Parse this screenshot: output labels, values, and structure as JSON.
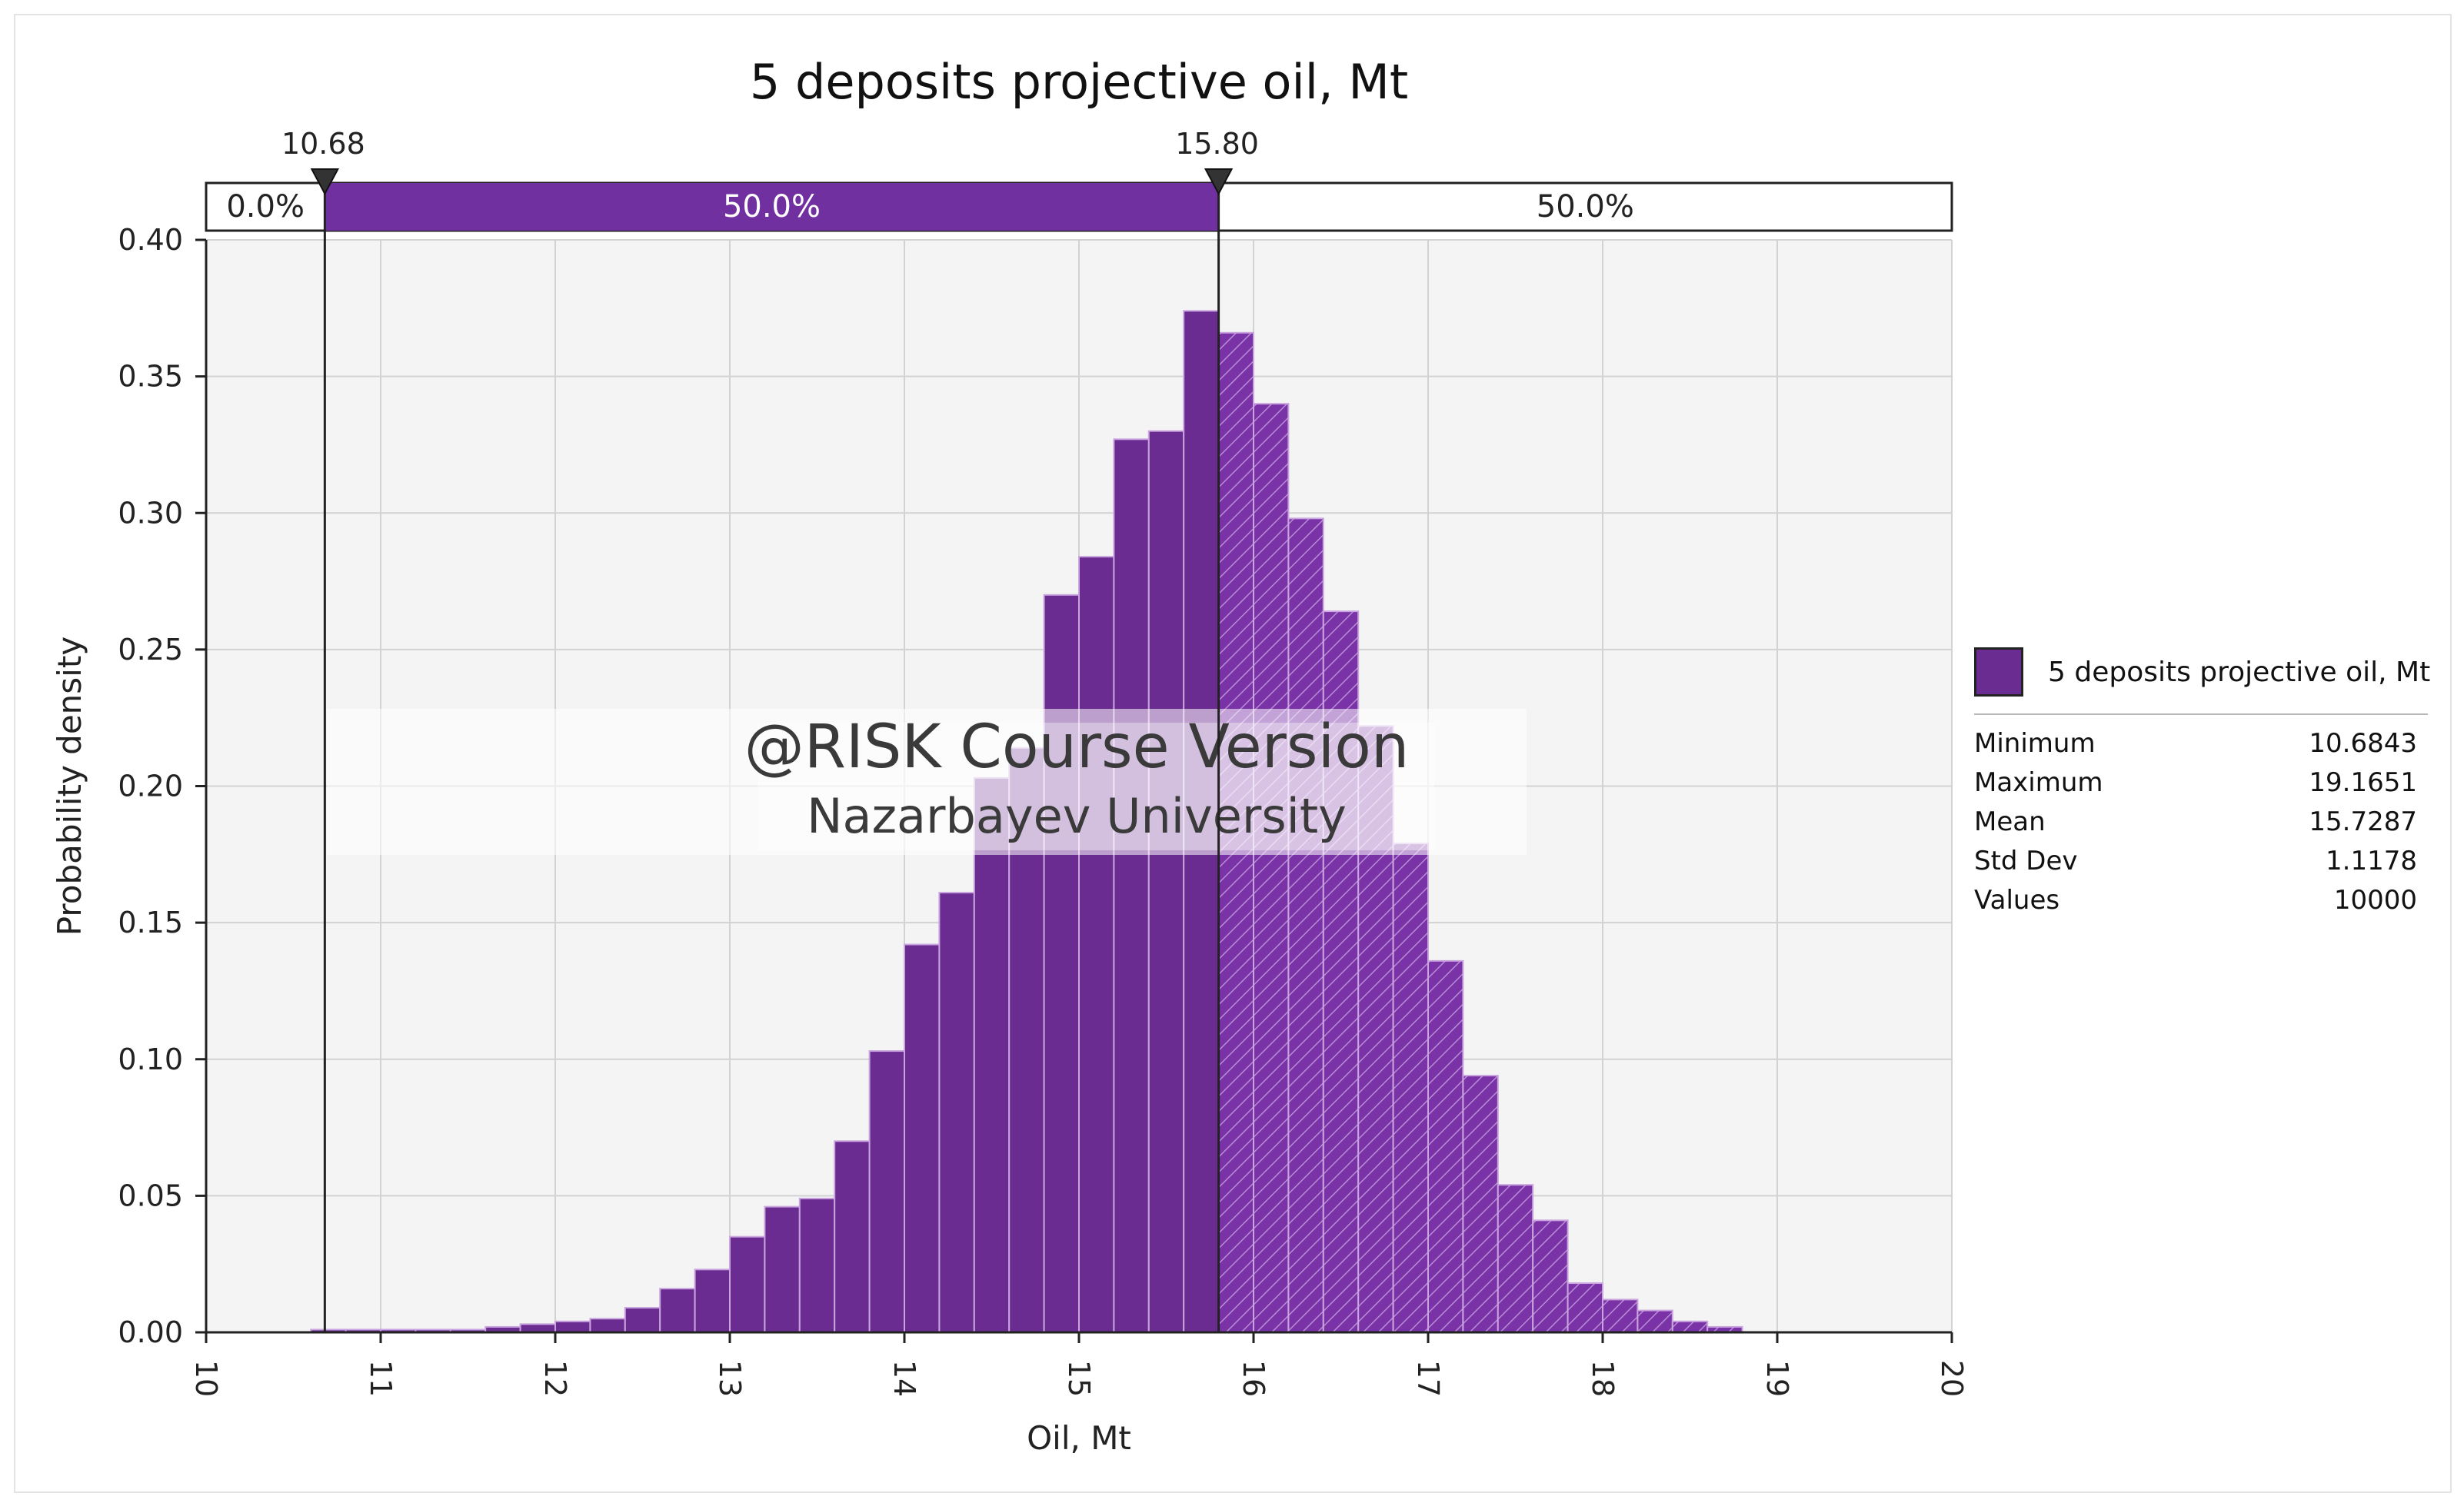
{
  "chart_data": {
    "type": "bar",
    "title": "5 deposits projective oil, Mt",
    "xlabel": "Oil, Mt",
    "ylabel": "Probability density",
    "xlim": [
      10,
      20
    ],
    "ylim": [
      0,
      0.4
    ],
    "x_ticks": [
      "10",
      "11",
      "12",
      "13",
      "14",
      "15",
      "16",
      "17",
      "18",
      "19",
      "20"
    ],
    "y_ticks": [
      "0.00",
      "0.05",
      "0.10",
      "0.15",
      "0.20",
      "0.25",
      "0.30",
      "0.35",
      "0.40"
    ],
    "grid": true,
    "bin_start": 10.6,
    "bin_width": 0.2,
    "values": [
      0.001,
      0.001,
      0.001,
      0.001,
      0.001,
      0.002,
      0.003,
      0.004,
      0.005,
      0.009,
      0.016,
      0.023,
      0.035,
      0.046,
      0.049,
      0.07,
      0.103,
      0.142,
      0.161,
      0.203,
      0.214,
      0.27,
      0.284,
      0.327,
      0.33,
      0.374,
      0.366,
      0.34,
      0.298,
      0.264,
      0.222,
      0.179,
      0.136,
      0.094,
      0.054,
      0.041,
      0.018,
      0.012,
      0.008,
      0.004,
      0.002
    ],
    "delimiters": {
      "left": {
        "value": 10.68,
        "label": "10.68"
      },
      "right": {
        "value": 15.8,
        "label": "15.80"
      },
      "percentages": [
        "0.0%",
        "50.0%",
        "50.0%"
      ]
    },
    "legend": {
      "series_name": "5 deposits projective oil, Mt",
      "placement": "right",
      "stats": [
        {
          "label": "Minimum",
          "value": "10.6843"
        },
        {
          "label": "Maximum",
          "value": "19.1651"
        },
        {
          "label": "Mean",
          "value": "15.7287"
        },
        {
          "label": "Std Dev",
          "value": "1.1178"
        },
        {
          "label": "Values",
          "value": "10000"
        }
      ]
    },
    "watermark": {
      "line1": "@RISK Course Version",
      "line2": "Nazarbayev University"
    }
  },
  "colors": {
    "bar_fill": "#6a2c91",
    "bar_fill_selected": "#792fa5",
    "bar_stroke": "#c9a4de",
    "plot_background": "#f4f4f4",
    "grid": "#d2d2d2",
    "delimiter_fill": "#7030a0",
    "axis": "#222222"
  }
}
